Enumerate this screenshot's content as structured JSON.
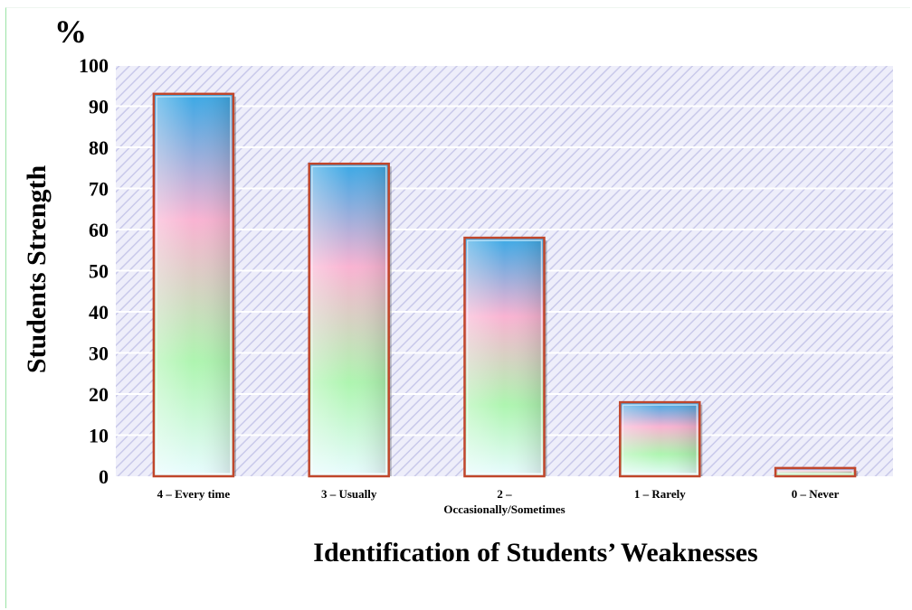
{
  "chart_data": {
    "type": "bar",
    "categories": [
      [
        "4 – Every time"
      ],
      [
        "3 – Usually"
      ],
      [
        "2 –",
        "Occasionally/Sometimes"
      ],
      [
        "1 – Rarely"
      ],
      [
        "0 – Never"
      ]
    ],
    "values": [
      93,
      76,
      58,
      18,
      2
    ],
    "title": "",
    "xlabel": "Identification of Students’ Weaknesses",
    "ylabel": "Students Strength",
    "yunit": "%",
    "ylim": [
      0,
      100
    ],
    "yticks": [
      0,
      10,
      20,
      30,
      40,
      50,
      60,
      70,
      80,
      90,
      100
    ],
    "grid": true,
    "legend": "none",
    "colors": {
      "bar_top": "#39a9e6",
      "bar_mid": "#f9b3d2",
      "bar_low": "#aef5b0",
      "bar_bottom": "#e8fcff",
      "bar_outline": "#c0462b",
      "plot_bg": "#eeeefa",
      "hatch": "#c9c9ea",
      "gridline": "#ffffff"
    }
  }
}
